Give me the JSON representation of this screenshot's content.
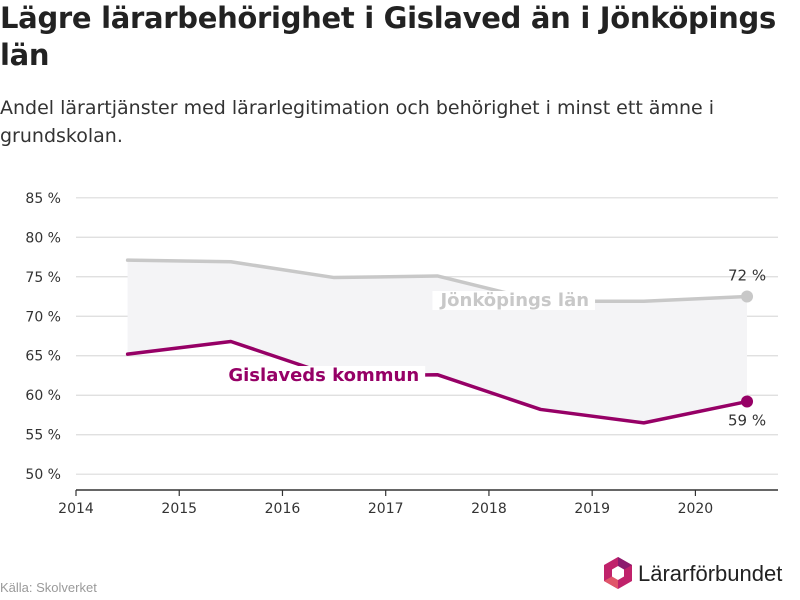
{
  "header": {
    "title": "Lägre lärarbehörighet i Gislaved än i Jönköpings län",
    "subtitle": "Andel lärartjänster med lärarlegitimation och behörighet i minst ett ämne i grundskolan."
  },
  "chart_data": {
    "type": "line",
    "x_ticks": [
      2014,
      2015,
      2016,
      2017,
      2018,
      2019,
      2020
    ],
    "y_ticks": [
      50,
      55,
      60,
      65,
      70,
      75,
      80,
      85
    ],
    "y_tick_labels": [
      "50 %",
      "55 %",
      "60 %",
      "65 %",
      "70 %",
      "75 %",
      "80 %",
      "85 %"
    ],
    "xlim": [
      2014,
      2020.8
    ],
    "ylim": [
      48,
      87
    ],
    "grid": true,
    "series": [
      {
        "name": "Jönköpings län",
        "color": "#c8c8c8",
        "x": [
          2014.5,
          2015.5,
          2016.5,
          2017.5,
          2018.5,
          2019.5,
          2020.5
        ],
        "values": [
          77.1,
          76.9,
          74.9,
          75.1,
          71.9,
          71.9,
          72.5
        ],
        "end_label": "72 %"
      },
      {
        "name": "Gislaveds kommun",
        "color": "#960066",
        "x": [
          2014.5,
          2015.5,
          2016.5,
          2017.5,
          2018.5,
          2019.5,
          2020.5
        ],
        "values": [
          65.2,
          66.8,
          62.4,
          62.6,
          58.2,
          56.5,
          59.2
        ],
        "end_label": "59 %"
      }
    ]
  },
  "footer": {
    "source": "Källa: Skolverket",
    "logo_text": "Lärarförbundet"
  }
}
